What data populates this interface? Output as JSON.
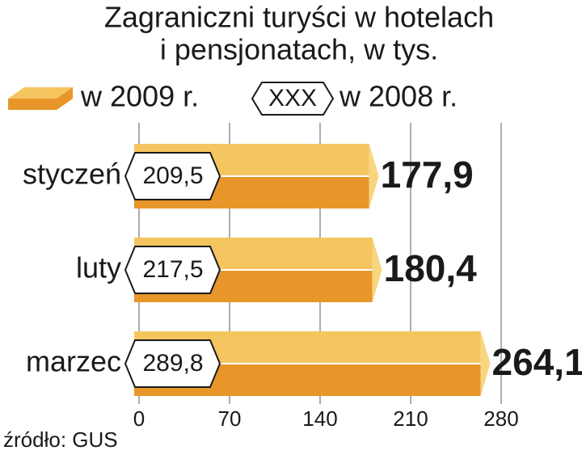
{
  "chart_data": {
    "type": "bar",
    "orientation": "horizontal",
    "title": [
      "Zagraniczni turyści w hotelach",
      "i pensjonatach, w tys."
    ],
    "categories": [
      "styczeń",
      "luty",
      "marzec"
    ],
    "series": [
      {
        "name": "w 2009 r.",
        "color": "#e8962a",
        "values": [
          177.9,
          180.4,
          264.1
        ],
        "value_labels": [
          "177,9",
          "180,4",
          "264,1"
        ]
      },
      {
        "name": "w 2008 r.",
        "legend_sample": "XXX",
        "values": [
          209.5,
          217.5,
          289.8
        ],
        "value_labels": [
          "209,5",
          "217,5",
          "289,8"
        ]
      }
    ],
    "xlim": [
      0,
      280
    ],
    "xticks": [
      0,
      70,
      140,
      210,
      280
    ],
    "grid": true,
    "source": "źródło: GUS"
  }
}
